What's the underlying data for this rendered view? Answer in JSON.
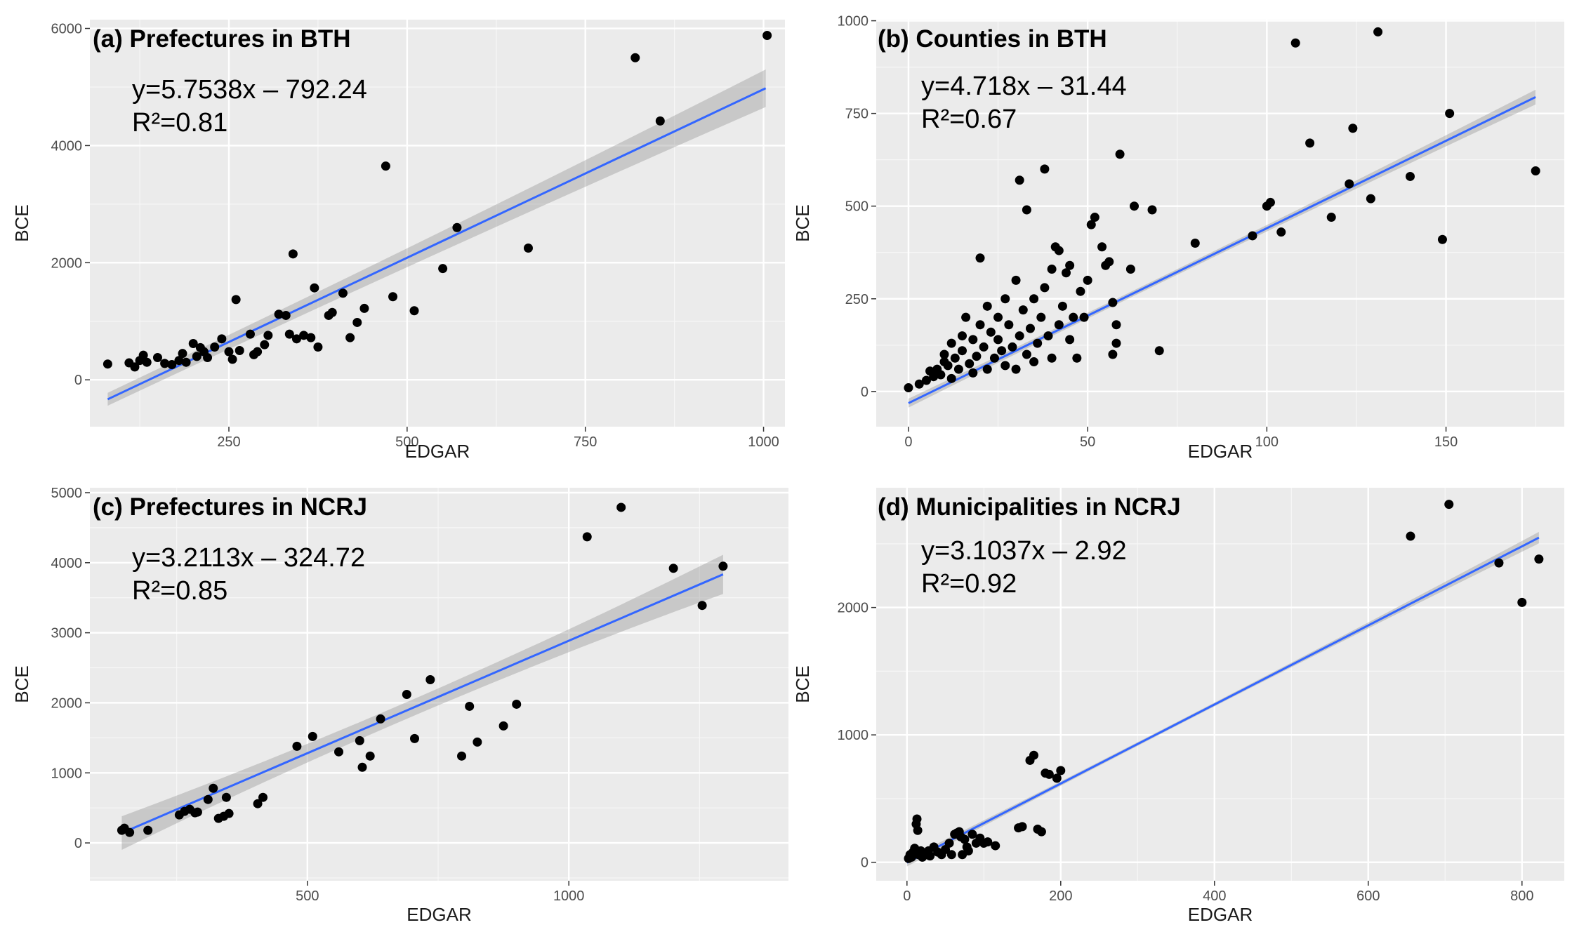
{
  "chart_data": [
    {
      "type": "scatter",
      "title": "(a) Prefectures in BTH",
      "xlabel": "EDGAR",
      "ylabel": "BCE",
      "xlim": [
        55,
        1030
      ],
      "ylim": [
        -800,
        6150
      ],
      "xticks": [
        250,
        500,
        750,
        1000
      ],
      "yticks": [
        0,
        2000,
        4000,
        6000
      ],
      "grid": true,
      "annotations": [
        "y=5.7538x – 792.24",
        "R²=0.81"
      ],
      "fit": {
        "slope": 5.7538,
        "intercept": -792.24,
        "x": [
          80,
          1003
        ],
        "band": [
          110,
          170,
          320
        ]
      },
      "points": [
        [
          80,
          270
        ],
        [
          110,
          290
        ],
        [
          118,
          220
        ],
        [
          125,
          330
        ],
        [
          130,
          420
        ],
        [
          135,
          300
        ],
        [
          150,
          380
        ],
        [
          160,
          280
        ],
        [
          170,
          260
        ],
        [
          180,
          330
        ],
        [
          185,
          450
        ],
        [
          190,
          300
        ],
        [
          200,
          620
        ],
        [
          205,
          400
        ],
        [
          210,
          550
        ],
        [
          215,
          480
        ],
        [
          220,
          380
        ],
        [
          230,
          560
        ],
        [
          240,
          700
        ],
        [
          250,
          480
        ],
        [
          255,
          350
        ],
        [
          260,
          1370
        ],
        [
          265,
          500
        ],
        [
          280,
          780
        ],
        [
          285,
          430
        ],
        [
          290,
          480
        ],
        [
          300,
          600
        ],
        [
          305,
          760
        ],
        [
          320,
          1120
        ],
        [
          330,
          1100
        ],
        [
          335,
          780
        ],
        [
          340,
          2150
        ],
        [
          345,
          700
        ],
        [
          355,
          760
        ],
        [
          365,
          720
        ],
        [
          370,
          1570
        ],
        [
          375,
          560
        ],
        [
          390,
          1100
        ],
        [
          395,
          1150
        ],
        [
          410,
          1480
        ],
        [
          420,
          720
        ],
        [
          430,
          980
        ],
        [
          440,
          1220
        ],
        [
          470,
          3650
        ],
        [
          480,
          1420
        ],
        [
          510,
          1180
        ],
        [
          550,
          1900
        ],
        [
          570,
          2600
        ],
        [
          670,
          2250
        ],
        [
          820,
          5500
        ],
        [
          855,
          4420
        ],
        [
          1005,
          5880
        ]
      ]
    },
    {
      "type": "scatter",
      "title": "(b) Counties in BTH",
      "xlabel": "EDGAR",
      "ylabel": "BCE",
      "xlim": [
        -9,
        183
      ],
      "ylim": [
        -95,
        1003
      ],
      "xticks": [
        0,
        50,
        100,
        150
      ],
      "yticks": [
        0,
        250,
        500,
        750,
        1000
      ],
      "grid": true,
      "annotations": [
        "y=4.718x – 31.44",
        "R²=0.67"
      ],
      "fit": {
        "slope": 4.718,
        "intercept": -31.44,
        "x": [
          0,
          175
        ],
        "band": [
          12,
          8,
          20
        ]
      },
      "points": [
        [
          0,
          10
        ],
        [
          3,
          20
        ],
        [
          5,
          30
        ],
        [
          6,
          55
        ],
        [
          7,
          40
        ],
        [
          8,
          60
        ],
        [
          9,
          45
        ],
        [
          10,
          80
        ],
        [
          10,
          100
        ],
        [
          11,
          70
        ],
        [
          12,
          35
        ],
        [
          12,
          130
        ],
        [
          13,
          90
        ],
        [
          14,
          60
        ],
        [
          15,
          110
        ],
        [
          15,
          150
        ],
        [
          16,
          200
        ],
        [
          17,
          75
        ],
        [
          18,
          140
        ],
        [
          18,
          50
        ],
        [
          19,
          95
        ],
        [
          20,
          180
        ],
        [
          20,
          360
        ],
        [
          21,
          120
        ],
        [
          22,
          60
        ],
        [
          22,
          230
        ],
        [
          23,
          160
        ],
        [
          24,
          90
        ],
        [
          25,
          140
        ],
        [
          25,
          200
        ],
        [
          26,
          110
        ],
        [
          27,
          70
        ],
        [
          27,
          250
        ],
        [
          28,
          180
        ],
        [
          29,
          120
        ],
        [
          30,
          60
        ],
        [
          30,
          300
        ],
        [
          31,
          150
        ],
        [
          31,
          570
        ],
        [
          32,
          220
        ],
        [
          33,
          490
        ],
        [
          33,
          100
        ],
        [
          34,
          170
        ],
        [
          35,
          250
        ],
        [
          35,
          80
        ],
        [
          36,
          130
        ],
        [
          37,
          200
        ],
        [
          38,
          280
        ],
        [
          38,
          600
        ],
        [
          39,
          150
        ],
        [
          40,
          330
        ],
        [
          40,
          90
        ],
        [
          41,
          390
        ],
        [
          42,
          380
        ],
        [
          42,
          180
        ],
        [
          43,
          230
        ],
        [
          44,
          320
        ],
        [
          45,
          340
        ],
        [
          45,
          140
        ],
        [
          46,
          200
        ],
        [
          47,
          90
        ],
        [
          48,
          270
        ],
        [
          49,
          200
        ],
        [
          50,
          300
        ],
        [
          51,
          450
        ],
        [
          52,
          470
        ],
        [
          54,
          390
        ],
        [
          55,
          340
        ],
        [
          56,
          350
        ],
        [
          57,
          240
        ],
        [
          57,
          100
        ],
        [
          58,
          130
        ],
        [
          58,
          180
        ],
        [
          59,
          640
        ],
        [
          62,
          330
        ],
        [
          63,
          500
        ],
        [
          68,
          490
        ],
        [
          70,
          110
        ],
        [
          80,
          400
        ],
        [
          96,
          420
        ],
        [
          100,
          500
        ],
        [
          101,
          510
        ],
        [
          104,
          430
        ],
        [
          108,
          940
        ],
        [
          112,
          670
        ],
        [
          118,
          470
        ],
        [
          123,
          560
        ],
        [
          124,
          710
        ],
        [
          129,
          520
        ],
        [
          131,
          970
        ],
        [
          140,
          580
        ],
        [
          149,
          410
        ],
        [
          151,
          750
        ],
        [
          175,
          595
        ]
      ]
    },
    {
      "type": "scatter",
      "title": "(c) Prefectures in NCRJ",
      "xlabel": "EDGAR",
      "ylabel": "BCE",
      "xlim": [
        84,
        1420
      ],
      "ylim": [
        -540,
        5070
      ],
      "xticks": [
        500,
        1000
      ],
      "yticks": [
        0,
        1000,
        2000,
        3000,
        4000,
        5000
      ],
      "grid": true,
      "annotations": [
        "y=3.2113x – 324.72",
        "R²=0.85"
      ],
      "fit": {
        "slope": 3.2113,
        "intercept": -324.72,
        "x": [
          145,
          1295
        ],
        "band": [
          240,
          120,
          280
        ]
      },
      "points": [
        [
          145,
          180
        ],
        [
          150,
          210
        ],
        [
          160,
          150
        ],
        [
          195,
          180
        ],
        [
          255,
          400
        ],
        [
          265,
          450
        ],
        [
          275,
          480
        ],
        [
          285,
          430
        ],
        [
          290,
          440
        ],
        [
          310,
          620
        ],
        [
          320,
          780
        ],
        [
          330,
          350
        ],
        [
          340,
          380
        ],
        [
          345,
          650
        ],
        [
          350,
          420
        ],
        [
          405,
          560
        ],
        [
          415,
          650
        ],
        [
          480,
          1380
        ],
        [
          510,
          1520
        ],
        [
          560,
          1300
        ],
        [
          600,
          1460
        ],
        [
          605,
          1080
        ],
        [
          620,
          1240
        ],
        [
          640,
          1770
        ],
        [
          690,
          2120
        ],
        [
          705,
          1490
        ],
        [
          735,
          2330
        ],
        [
          795,
          1240
        ],
        [
          810,
          1950
        ],
        [
          825,
          1440
        ],
        [
          875,
          1670
        ],
        [
          900,
          1980
        ],
        [
          1035,
          4370
        ],
        [
          1100,
          4790
        ],
        [
          1200,
          3920
        ],
        [
          1255,
          3390
        ],
        [
          1295,
          3950
        ]
      ]
    },
    {
      "type": "scatter",
      "title": "(d) Municipalities in NCRJ",
      "xlabel": "EDGAR",
      "ylabel": "BCE",
      "xlim": [
        -40,
        855
      ],
      "ylim": [
        -145,
        2940
      ],
      "xticks": [
        0,
        200,
        400,
        600,
        800
      ],
      "yticks": [
        0,
        1000,
        2000
      ],
      "grid": true,
      "annotations": [
        "y=3.1037x – 2.92",
        "R²=0.92"
      ],
      "fit": {
        "slope": 3.1037,
        "intercept": -2.92,
        "x": [
          0,
          822
        ],
        "band": [
          30,
          15,
          45
        ]
      },
      "points": [
        [
          2,
          30
        ],
        [
          4,
          60
        ],
        [
          6,
          40
        ],
        [
          8,
          80
        ],
        [
          10,
          110
        ],
        [
          12,
          300
        ],
        [
          13,
          340
        ],
        [
          14,
          250
        ],
        [
          15,
          60
        ],
        [
          18,
          90
        ],
        [
          20,
          40
        ],
        [
          25,
          60
        ],
        [
          28,
          90
        ],
        [
          30,
          50
        ],
        [
          35,
          120
        ],
        [
          40,
          80
        ],
        [
          45,
          60
        ],
        [
          50,
          100
        ],
        [
          55,
          150
        ],
        [
          58,
          60
        ],
        [
          62,
          220
        ],
        [
          65,
          230
        ],
        [
          68,
          240
        ],
        [
          70,
          200
        ],
        [
          72,
          60
        ],
        [
          75,
          180
        ],
        [
          78,
          120
        ],
        [
          80,
          90
        ],
        [
          85,
          220
        ],
        [
          90,
          150
        ],
        [
          95,
          190
        ],
        [
          100,
          150
        ],
        [
          105,
          160
        ],
        [
          115,
          130
        ],
        [
          145,
          270
        ],
        [
          150,
          280
        ],
        [
          160,
          800
        ],
        [
          165,
          840
        ],
        [
          170,
          260
        ],
        [
          175,
          240
        ],
        [
          180,
          700
        ],
        [
          185,
          690
        ],
        [
          195,
          660
        ],
        [
          200,
          720
        ],
        [
          655,
          2560
        ],
        [
          705,
          2810
        ],
        [
          770,
          2350
        ],
        [
          800,
          2040
        ],
        [
          822,
          2380
        ]
      ]
    }
  ]
}
